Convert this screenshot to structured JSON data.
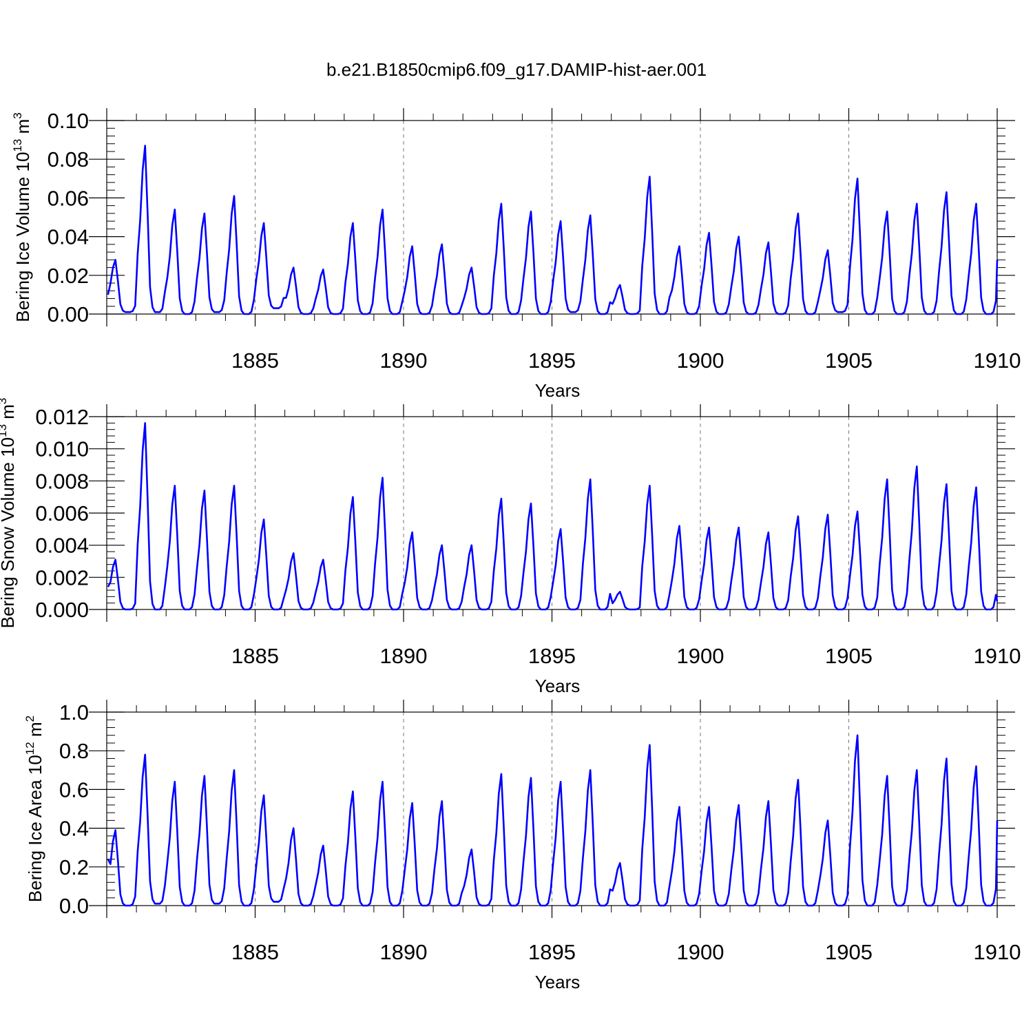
{
  "title": "b.e21.B1850cmip6.f09_g17.DAMIP-hist-aer.001",
  "colors": {
    "series": "#0000ff",
    "grid": "#777777",
    "axis": "#000000"
  },
  "chart_data": [
    {
      "type": "line",
      "name": "ice-volume",
      "ylabel_main": "Bering Ice Volume 10",
      "ylabel_exp": "13",
      "ylabel_unit": " m",
      "ylabel_unit_exp": "3",
      "xlabel": "Years",
      "xlim": [
        1880,
        1910
      ],
      "ylim": [
        0,
        0.1
      ],
      "yticks": [
        "0.00",
        "0.02",
        "0.04",
        "0.06",
        "0.08",
        "0.10"
      ],
      "xticks": [
        "1885",
        "1890",
        "1895",
        "1900",
        "1905",
        "1910"
      ],
      "grid_x": [
        1885,
        1890,
        1895,
        1900,
        1905
      ],
      "peaks": [
        0.028,
        0.087,
        0.054,
        0.052,
        0.061,
        0.047,
        0.024,
        0.023,
        0.047,
        0.054,
        0.035,
        0.036,
        0.024,
        0.057,
        0.053,
        0.048,
        0.051,
        0.015,
        0.071,
        0.035,
        0.042,
        0.04,
        0.037,
        0.052,
        0.033,
        0.07,
        0.053,
        0.057,
        0.063,
        0.057
      ],
      "troughs": [
        0.001,
        0.001,
        0.0,
        0.001,
        0.0,
        0.003,
        0.0,
        0.0,
        0.0,
        0.0,
        0.0,
        0.0,
        0.0,
        0.0,
        0.0,
        0.001,
        0.0,
        0.0,
        0.0,
        0.0,
        0.0,
        0.0,
        0.0,
        0.0,
        0.001,
        0.0,
        0.0,
        0.0,
        0.0,
        0.0
      ],
      "start_value": 0.01,
      "end_value": 0.028
    },
    {
      "type": "line",
      "name": "snow-volume",
      "ylabel_main": "Bering Snow Volume 10",
      "ylabel_exp": "13",
      "ylabel_unit": " m",
      "ylabel_unit_exp": "3",
      "xlabel": "Years",
      "xlim": [
        1880,
        1910
      ],
      "ylim": [
        0,
        0.012
      ],
      "yticks": [
        "0.000",
        "0.002",
        "0.004",
        "0.006",
        "0.008",
        "0.010",
        "0.012"
      ],
      "xticks": [
        "1885",
        "1890",
        "1895",
        "1900",
        "1905",
        "1910"
      ],
      "grid_x": [
        1885,
        1890,
        1895,
        1900,
        1905
      ],
      "peaks": [
        0.0031,
        0.0116,
        0.0077,
        0.0074,
        0.0077,
        0.0056,
        0.0035,
        0.0031,
        0.007,
        0.0082,
        0.0048,
        0.004,
        0.004,
        0.0069,
        0.0066,
        0.005,
        0.0081,
        0.0011,
        0.0077,
        0.0052,
        0.0051,
        0.0051,
        0.0048,
        0.0058,
        0.0059,
        0.0061,
        0.0081,
        0.0089,
        0.0078,
        0.0076
      ],
      "troughs": [
        0,
        0,
        0,
        0,
        0,
        0,
        0,
        0,
        0,
        0,
        0,
        0,
        0,
        0,
        0,
        0,
        0,
        0,
        0,
        0,
        0,
        0,
        0,
        0,
        0,
        0,
        0,
        0,
        0,
        0
      ],
      "start_value": 0.0014,
      "end_value": 0.0005
    },
    {
      "type": "line",
      "name": "ice-area",
      "ylabel_main": "Bering Ice Area 10",
      "ylabel_exp": "12",
      "ylabel_unit": " m",
      "ylabel_unit_exp": "2",
      "xlabel": "Years",
      "xlim": [
        1880,
        1910
      ],
      "ylim": [
        0,
        1.0
      ],
      "yticks": [
        "0.0",
        "0.2",
        "0.4",
        "0.6",
        "0.8",
        "1.0"
      ],
      "xticks": [
        "1885",
        "1890",
        "1895",
        "1900",
        "1905",
        "1910"
      ],
      "grid_x": [
        1885,
        1890,
        1895,
        1900,
        1905
      ],
      "peaks": [
        0.39,
        0.78,
        0.64,
        0.67,
        0.7,
        0.57,
        0.4,
        0.31,
        0.59,
        0.64,
        0.53,
        0.54,
        0.29,
        0.68,
        0.66,
        0.64,
        0.7,
        0.22,
        0.83,
        0.51,
        0.51,
        0.52,
        0.54,
        0.65,
        0.44,
        0.88,
        0.67,
        0.7,
        0.76,
        0.72
      ],
      "troughs": [
        0.0,
        0.01,
        0.0,
        0.01,
        0.0,
        0.02,
        0.0,
        0.0,
        0.0,
        0.0,
        0.0,
        0.0,
        0.0,
        0.0,
        0.0,
        0.0,
        0.0,
        0.0,
        0.0,
        0.0,
        0.0,
        0.0,
        0.0,
        0.0,
        0.0,
        0.0,
        0.0,
        0.0,
        0.0,
        0.0
      ],
      "start_value": 0.24,
      "end_value": 0.44
    }
  ]
}
